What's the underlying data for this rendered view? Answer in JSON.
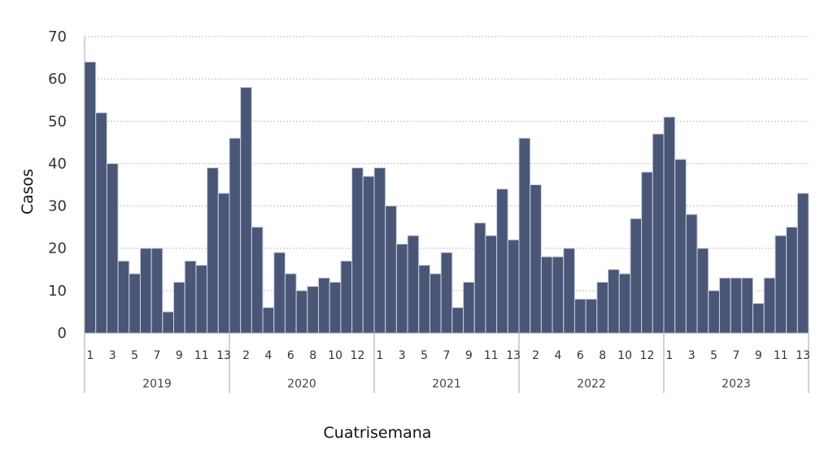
{
  "chart_data": {
    "type": "bar",
    "xlabel": "Cuatrisemana",
    "ylabel": "Casos",
    "ylim": [
      0,
      70
    ],
    "yticks": [
      0,
      10,
      20,
      30,
      40,
      50,
      60,
      70
    ],
    "grid": true,
    "colors": {
      "bar": "#4a5676",
      "bar_border": "#c8d0e6",
      "grid": "#bfbfbf",
      "axis": "#a6a6a6"
    },
    "groups": [
      {
        "label": "2019",
        "periods": [
          "1",
          "2",
          "3",
          "4",
          "5",
          "6",
          "7",
          "8",
          "9",
          "10",
          "11",
          "12",
          "13"
        ],
        "tick_labels": [
          "1",
          "3",
          "5",
          "7",
          "9",
          "11",
          "13"
        ],
        "values": [
          64,
          52,
          40,
          17,
          14,
          20,
          20,
          5,
          12,
          17,
          16,
          39,
          33
        ]
      },
      {
        "label": "2020",
        "periods": [
          "1",
          "2",
          "3",
          "4",
          "5",
          "6",
          "7",
          "8",
          "9",
          "10",
          "11",
          "12",
          "13"
        ],
        "tick_labels": [
          "2",
          "4",
          "6",
          "8",
          "10",
          "12"
        ],
        "values": [
          46,
          58,
          25,
          6,
          19,
          14,
          10,
          11,
          13,
          12,
          17,
          39,
          37
        ]
      },
      {
        "label": "2021",
        "periods": [
          "1",
          "2",
          "3",
          "4",
          "5",
          "6",
          "7",
          "8",
          "9",
          "10",
          "11",
          "12",
          "13"
        ],
        "tick_labels": [
          "1",
          "3",
          "5",
          "7",
          "9",
          "11",
          "13"
        ],
        "values": [
          39,
          30,
          21,
          23,
          16,
          14,
          19,
          6,
          12,
          26,
          23,
          34,
          22
        ]
      },
      {
        "label": "2022",
        "periods": [
          "1",
          "2",
          "3",
          "4",
          "5",
          "6",
          "7",
          "8",
          "9",
          "10",
          "11",
          "12",
          "13"
        ],
        "tick_labels": [
          "2",
          "4",
          "6",
          "8",
          "10",
          "12"
        ],
        "values": [
          46,
          35,
          18,
          18,
          20,
          8,
          8,
          12,
          15,
          14,
          27,
          38,
          47
        ]
      },
      {
        "label": "2023",
        "periods": [
          "1",
          "2",
          "3",
          "4",
          "5",
          "6",
          "7",
          "8",
          "9",
          "10",
          "11",
          "12",
          "13"
        ],
        "tick_labels": [
          "1",
          "3",
          "5",
          "7",
          "9",
          "11",
          "13"
        ],
        "values": [
          51,
          41,
          28,
          20,
          10,
          13,
          13,
          13,
          7,
          13,
          23,
          25,
          33
        ]
      }
    ]
  }
}
